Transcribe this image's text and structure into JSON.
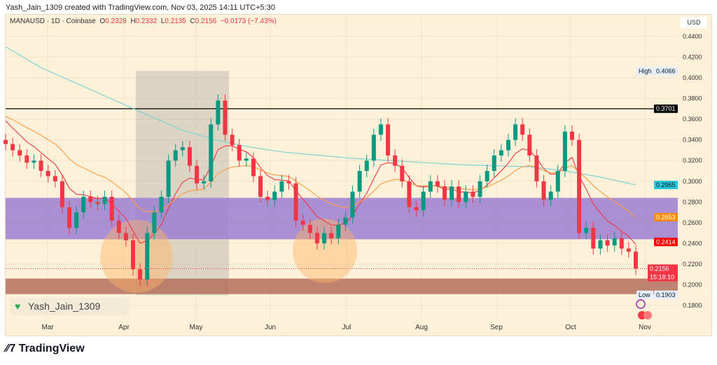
{
  "header": {
    "attribution": "Yash_Jain_1309 created with TradingView.com, Nov 03, 2025 14:11 UTC+5:30"
  },
  "legend": {
    "symbol": "MANAUSD · 1D · Coinbase",
    "o_label": "O",
    "o": "0.2328",
    "h_label": "H",
    "h": "0.2332",
    "l_label": "L",
    "l": "0.2135",
    "c_label": "C",
    "c": "0.2156",
    "change": "−0.0173 (−7.43%)"
  },
  "watermark": "Yash_Jain_1309",
  "footer": {
    "logo": "TradingView"
  },
  "colors": {
    "bg": "#fdf1d9",
    "up": "#089981",
    "down": "#f23645",
    "ema_fast": "#f23645",
    "ema_slow": "#ff9a3c",
    "ma_long": "#7fd3d0",
    "zone_purple": "#9b7fd0",
    "zone_brown": "#b5705f"
  },
  "chart_data": {
    "type": "candlestick",
    "currency_label": "USD",
    "x_ticks": [
      "Mar",
      "Apr",
      "May",
      "Jun",
      "Jul",
      "Aug",
      "Sep",
      "Oct",
      "Nov"
    ],
    "y_ticks": [
      "0.4400",
      "0.4200",
      "0.4000",
      "0.3800",
      "0.3600",
      "0.3400",
      "0.3200",
      "0.3000",
      "0.2800",
      "0.2600",
      "0.2400",
      "0.2200",
      "0.2000",
      "0.1800"
    ],
    "ylim": [
      0.17,
      0.45
    ],
    "closes": [
      0.336,
      0.33,
      0.325,
      0.318,
      0.32,
      0.31,
      0.305,
      0.3,
      0.275,
      0.255,
      0.27,
      0.285,
      0.28,
      0.278,
      0.285,
      0.262,
      0.25,
      0.243,
      0.215,
      0.205,
      0.25,
      0.27,
      0.285,
      0.32,
      0.33,
      0.333,
      0.315,
      0.298,
      0.3,
      0.355,
      0.378,
      0.345,
      0.335,
      0.32,
      0.322,
      0.305,
      0.285,
      0.282,
      0.29,
      0.3,
      0.298,
      0.262,
      0.258,
      0.25,
      0.24,
      0.25,
      0.245,
      0.258,
      0.265,
      0.29,
      0.31,
      0.32,
      0.345,
      0.355,
      0.325,
      0.315,
      0.3,
      0.275,
      0.272,
      0.29,
      0.3,
      0.295,
      0.282,
      0.295,
      0.28,
      0.29,
      0.285,
      0.3,
      0.31,
      0.325,
      0.33,
      0.34,
      0.355,
      0.345,
      0.325,
      0.3,
      0.282,
      0.29,
      0.31,
      0.348,
      0.34,
      0.25,
      0.255,
      0.235,
      0.243,
      0.238,
      0.245,
      0.235,
      0.232,
      0.2156
    ],
    "long_ma": [
      0.43,
      0.41,
      0.395,
      0.38,
      0.365,
      0.35,
      0.34,
      0.333,
      0.328,
      0.325,
      0.322,
      0.32,
      0.318,
      0.316,
      0.315,
      0.314,
      0.31,
      0.304,
      0.2965
    ],
    "horizontal_line": 0.3701,
    "zones": [
      {
        "top": 0.284,
        "bottom": 0.244,
        "color": "purple"
      },
      {
        "top": 0.206,
        "bottom": 0.191,
        "color": "brown"
      }
    ],
    "price_tags": [
      {
        "label": "",
        "value": "0.4066",
        "price": 0.4066,
        "bg": "#e3eefa",
        "fg": "#131722",
        "prefix": "High"
      },
      {
        "value": "0.3701",
        "price": 0.3701,
        "bg": "#000000",
        "fg": "#ffffff"
      },
      {
        "value": "0.2965",
        "price": 0.2965,
        "bg": "#26c6da",
        "fg": "#131722"
      },
      {
        "value": "0.2653",
        "price": 0.2653,
        "bg": "#ff8c00",
        "fg": "#ffffff"
      },
      {
        "value": "0.2414",
        "price": 0.2414,
        "bg": "#ff0000",
        "fg": "#ffffff"
      },
      {
        "value": "0.2156",
        "price": 0.2156,
        "bg": "#f23645",
        "fg": "#ffffff",
        "sub": "15:18:10"
      },
      {
        "value": "0.1903",
        "price": 0.1903,
        "bg": "#e3eefa",
        "fg": "#131722",
        "prefix": "Low"
      }
    ]
  }
}
